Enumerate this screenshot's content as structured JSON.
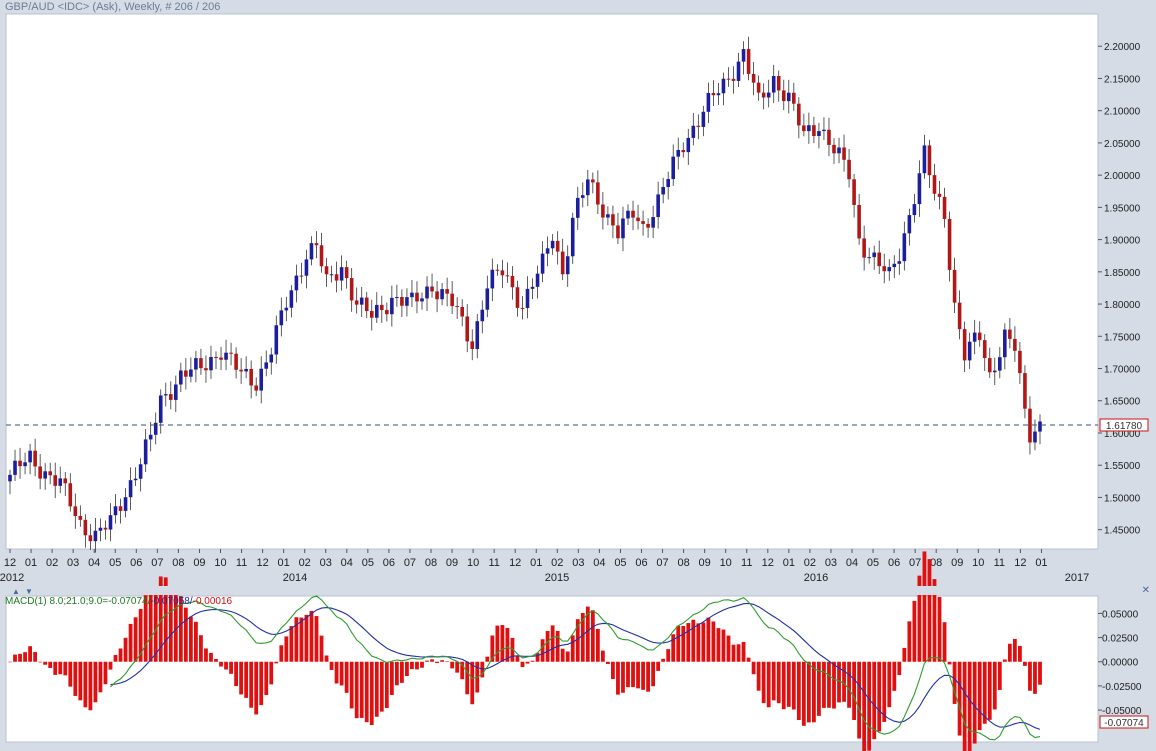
{
  "title": "GBP/AUD <IDC> (Ask), Weekly, # 206 / 206",
  "price_chart": {
    "y_ticks": [
      "2.20000",
      "2.15000",
      "2.10000",
      "2.05000",
      "2.00000",
      "1.95000",
      "1.90000",
      "1.85000",
      "1.80000",
      "1.75000",
      "1.70000",
      "1.65000",
      "1.60000",
      "1.55000",
      "1.50000",
      "1.45000"
    ],
    "last_price_label": "1.61780",
    "x_month_ticks": [
      "12",
      "01",
      "02",
      "03",
      "04",
      "05",
      "06",
      "07",
      "08",
      "09",
      "10",
      "11",
      "12",
      "01",
      "02",
      "03",
      "04",
      "05",
      "06",
      "07",
      "08",
      "09",
      "10",
      "11",
      "12",
      "01",
      "02",
      "03",
      "04",
      "05",
      "06",
      "07",
      "08",
      "09",
      "10",
      "11",
      "12",
      "01",
      "02",
      "03",
      "04",
      "05",
      "06",
      "07",
      "08",
      "09",
      "10",
      "11",
      "12",
      "01"
    ],
    "x_year_ticks": [
      "2012",
      "2014",
      "2015",
      "2016",
      "2017"
    ]
  },
  "macd_legend": {
    "main": "MACD(1) 8.0;21.0;9.0=-0.07074/",
    "signal": "-0.07058/",
    "hist": "-0.00016"
  },
  "macd_chart": {
    "y_ticks": [
      "0.05000",
      "0.02500",
      "0.00000",
      "-0.02500",
      "-0.05000"
    ],
    "last_value_label": "-0.07074"
  },
  "colors": {
    "up": "#1c1f9c",
    "down": "#b01818",
    "macd": "#2e9c2e",
    "signal": "#2030a8",
    "hist": "#e01010"
  },
  "chart_data": [
    {
      "type": "candlestick",
      "title": "GBP/AUD <IDC> (Ask), Weekly, # 206 / 206",
      "interval": "weekly",
      "ylim": [
        1.42,
        2.25
      ],
      "current_price": 1.6178,
      "anchors": [
        {
          "week": 0,
          "price": 1.535
        },
        {
          "week": 4,
          "price": 1.56
        },
        {
          "week": 10,
          "price": 1.52
        },
        {
          "week": 14,
          "price": 1.46
        },
        {
          "week": 17,
          "price": 1.44
        },
        {
          "week": 20,
          "price": 1.46
        },
        {
          "week": 25,
          "price": 1.54
        },
        {
          "week": 28,
          "price": 1.59
        },
        {
          "week": 30,
          "price": 1.65
        },
        {
          "week": 34,
          "price": 1.69
        },
        {
          "week": 38,
          "price": 1.7
        },
        {
          "week": 42,
          "price": 1.73
        },
        {
          "week": 46,
          "price": 1.69
        },
        {
          "week": 49,
          "price": 1.68
        },
        {
          "week": 52,
          "price": 1.73
        },
        {
          "week": 55,
          "price": 1.8
        },
        {
          "week": 59,
          "price": 1.88
        },
        {
          "week": 61,
          "price": 1.89
        },
        {
          "week": 63,
          "price": 1.83
        },
        {
          "week": 66,
          "price": 1.86
        },
        {
          "week": 69,
          "price": 1.8
        },
        {
          "week": 72,
          "price": 1.78
        },
        {
          "week": 76,
          "price": 1.81
        },
        {
          "week": 80,
          "price": 1.8
        },
        {
          "week": 84,
          "price": 1.83
        },
        {
          "week": 88,
          "price": 1.8
        },
        {
          "week": 92,
          "price": 1.74
        },
        {
          "week": 95,
          "price": 1.83
        },
        {
          "week": 98,
          "price": 1.85
        },
        {
          "week": 102,
          "price": 1.8
        },
        {
          "week": 106,
          "price": 1.86
        },
        {
          "week": 108,
          "price": 1.91
        },
        {
          "week": 110,
          "price": 1.85
        },
        {
          "week": 112,
          "price": 1.93
        },
        {
          "week": 115,
          "price": 1.99
        },
        {
          "week": 118,
          "price": 1.95
        },
        {
          "week": 121,
          "price": 1.91
        },
        {
          "week": 124,
          "price": 1.94
        },
        {
          "week": 126,
          "price": 1.92
        },
        {
          "week": 129,
          "price": 1.96
        },
        {
          "week": 134,
          "price": 2.05
        },
        {
          "week": 138,
          "price": 2.1
        },
        {
          "week": 142,
          "price": 2.14
        },
        {
          "week": 146,
          "price": 2.19
        },
        {
          "week": 149,
          "price": 2.11
        },
        {
          "week": 152,
          "price": 2.15
        },
        {
          "week": 155,
          "price": 2.12
        },
        {
          "week": 158,
          "price": 2.06
        },
        {
          "week": 161,
          "price": 2.08
        },
        {
          "week": 164,
          "price": 2.04
        },
        {
          "week": 167,
          "price": 2.0
        },
        {
          "week": 169,
          "price": 1.9
        },
        {
          "week": 172,
          "price": 1.87
        },
        {
          "week": 175,
          "price": 1.84
        },
        {
          "week": 177,
          "price": 1.88
        },
        {
          "week": 180,
          "price": 1.97
        },
        {
          "week": 182,
          "price": 2.03
        },
        {
          "week": 184,
          "price": 1.97
        },
        {
          "week": 186,
          "price": 1.94
        },
        {
          "week": 188,
          "price": 1.8
        },
        {
          "week": 190,
          "price": 1.72
        },
        {
          "week": 193,
          "price": 1.75
        },
        {
          "week": 195,
          "price": 1.69
        },
        {
          "week": 198,
          "price": 1.75
        },
        {
          "week": 200,
          "price": 1.73
        },
        {
          "week": 202,
          "price": 1.63
        },
        {
          "week": 203,
          "price": 1.6
        },
        {
          "week": 205,
          "price": 1.6178
        }
      ]
    },
    {
      "type": "line",
      "title": "MACD(1) 8.0;21.0;9.0",
      "ylim": [
        -0.083,
        0.068
      ],
      "series": [
        {
          "name": "MACD",
          "value": -0.07074
        },
        {
          "name": "Signal",
          "value": -0.07058
        },
        {
          "name": "Histogram",
          "value": -0.00016
        }
      ]
    }
  ]
}
